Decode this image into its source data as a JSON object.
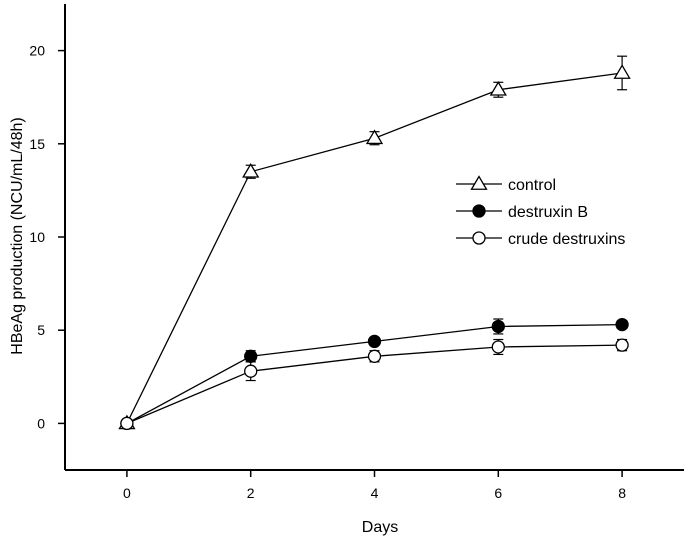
{
  "chart_data": {
    "type": "line",
    "xlabel": "Days",
    "ylabel": "HBeAg production (NCU/mL/48h)",
    "x": [
      0,
      2,
      4,
      6,
      8
    ],
    "xlim": [
      -1,
      9
    ],
    "ylim": [
      -2.5,
      22.5
    ],
    "xticks": [
      0,
      2,
      4,
      6,
      8
    ],
    "yticks": [
      0,
      5,
      10,
      15,
      20
    ],
    "grid": false,
    "legend_position": "right",
    "series": [
      {
        "name": "control",
        "marker": "open-triangle",
        "values": [
          0,
          13.5,
          15.3,
          17.9,
          18.8
        ],
        "errors": [
          0,
          0.35,
          0.35,
          0.4,
          0.9
        ]
      },
      {
        "name": "destruxin B",
        "marker": "filled-circle",
        "values": [
          0,
          3.6,
          4.4,
          5.2,
          5.3
        ],
        "errors": [
          0,
          0.3,
          0.2,
          0.4,
          0.2
        ]
      },
      {
        "name": "crude destruxins",
        "marker": "open-circle",
        "values": [
          0,
          2.8,
          3.6,
          4.1,
          4.2
        ],
        "errors": [
          0,
          0.5,
          0.3,
          0.4,
          0.3
        ]
      }
    ]
  }
}
